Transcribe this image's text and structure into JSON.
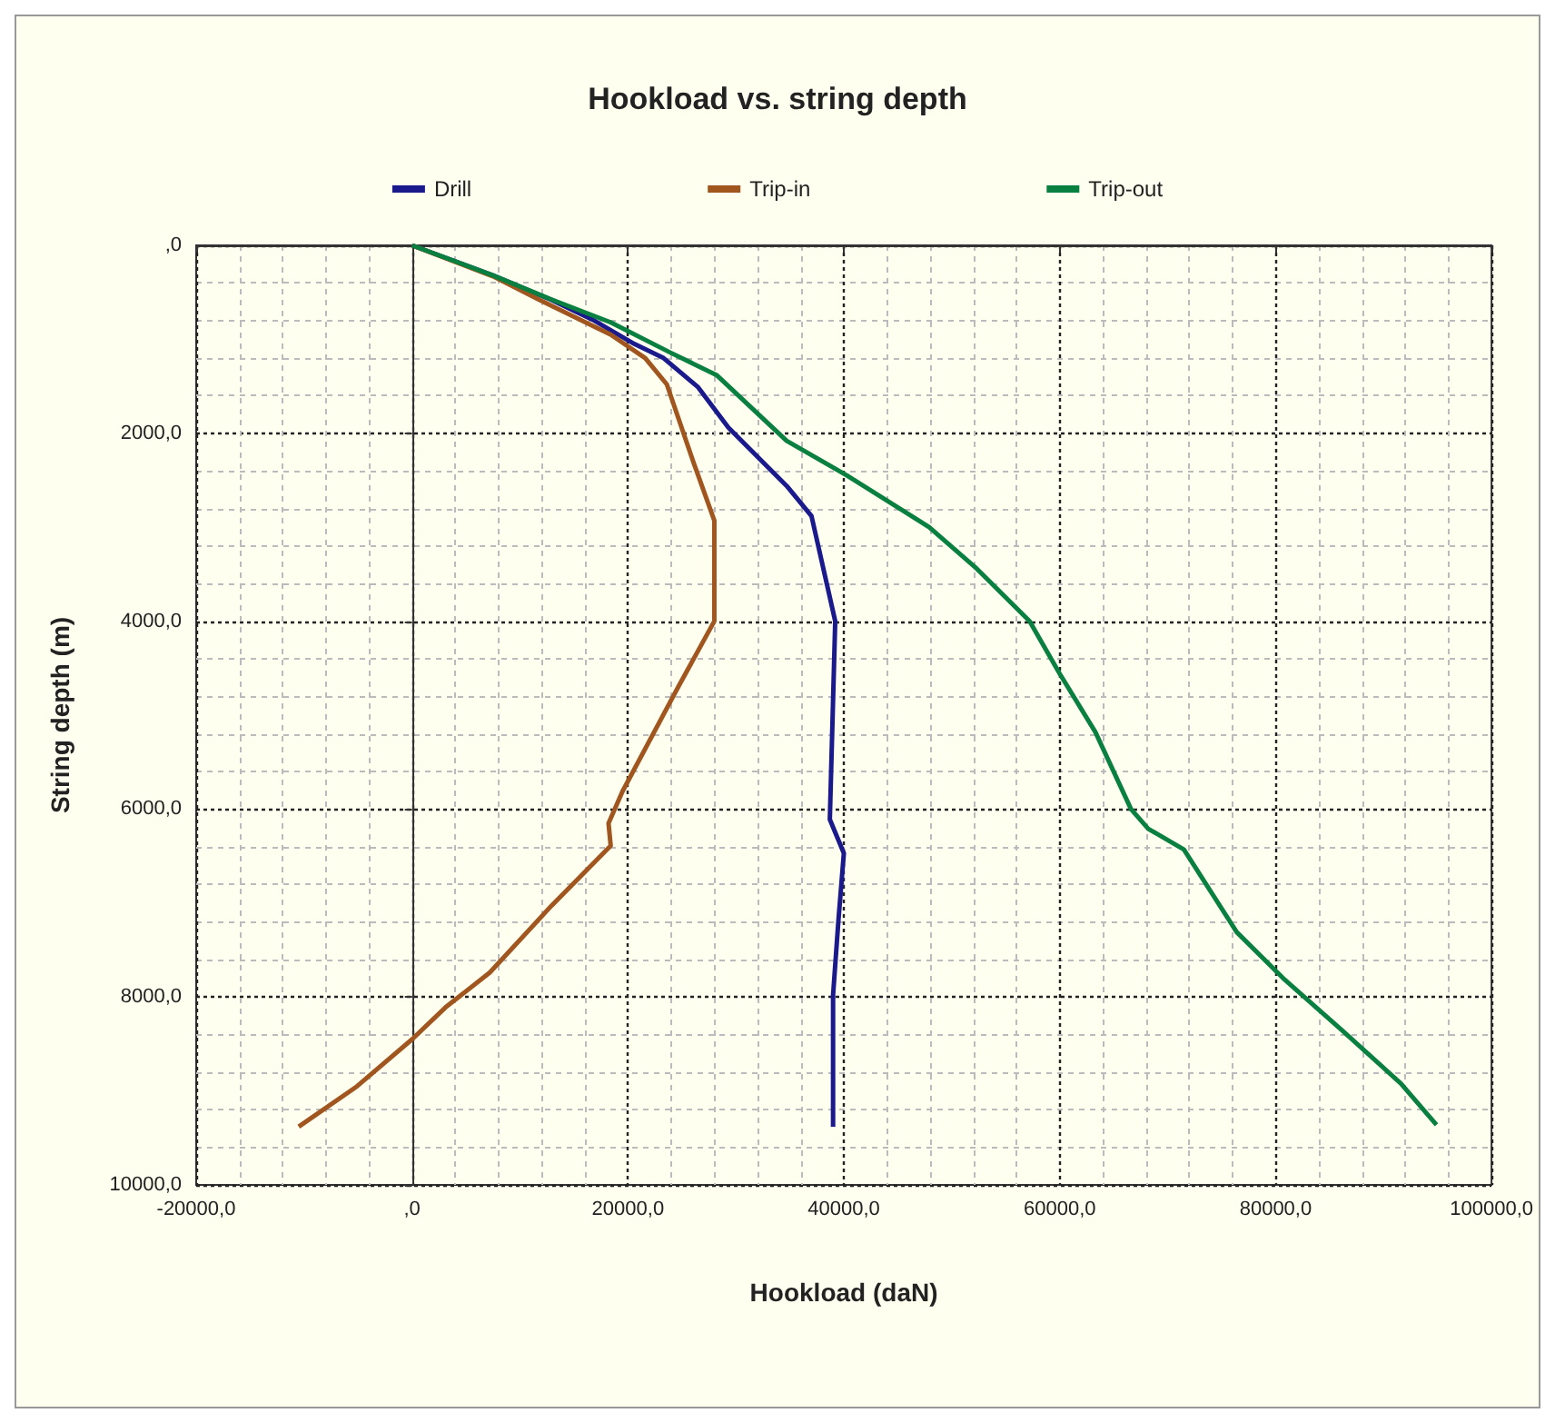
{
  "chart_data": {
    "type": "line",
    "title": "Hookload vs. string depth",
    "xlabel": "Hookload (daN)",
    "ylabel": "String depth (m)",
    "xlim": [
      -20000,
      100000
    ],
    "ylim": [
      10000,
      0
    ],
    "xticks": [
      {
        "value": -20000,
        "label": "-20000,0"
      },
      {
        "value": 0,
        "label": ",0"
      },
      {
        "value": 20000,
        "label": "20000,0"
      },
      {
        "value": 40000,
        "label": "40000,0"
      },
      {
        "value": 60000,
        "label": "60000,0"
      },
      {
        "value": 80000,
        "label": "80000,0"
      },
      {
        "value": 100000,
        "label": "100000,0"
      }
    ],
    "yticks": [
      {
        "value": 0,
        "label": ",0"
      },
      {
        "value": 2000,
        "label": "2000,0"
      },
      {
        "value": 4000,
        "label": "4000,0"
      },
      {
        "value": 6000,
        "label": "6000,0"
      },
      {
        "value": 8000,
        "label": "8000,0"
      },
      {
        "value": 10000,
        "label": "10000,0"
      }
    ],
    "grid": true,
    "legend": "top",
    "series": [
      {
        "name": "Drill",
        "color": "#1a1a8c",
        "x": [
          0,
          7500,
          12900,
          16700,
          20600,
          23300,
          26500,
          29300,
          34700,
          37000,
          39200,
          38700,
          40000,
          39500,
          39000,
          39000
        ],
        "values": [
          0,
          320,
          580,
          790,
          1050,
          1200,
          1510,
          1940,
          2560,
          2880,
          4000,
          6110,
          6470,
          7180,
          7980,
          9380
        ]
      },
      {
        "name": "Trip-in",
        "color": "#a0561e",
        "x": [
          0,
          7500,
          11800,
          18400,
          21600,
          23600,
          26100,
          28000,
          28000,
          24700,
          19500,
          18200,
          18400,
          12900,
          7200,
          3100,
          0,
          -5100,
          -10500
        ],
        "values": [
          0,
          330,
          580,
          950,
          1200,
          1480,
          2320,
          2930,
          4000,
          4690,
          5810,
          6150,
          6390,
          7030,
          7740,
          8110,
          8450,
          8950,
          9380
        ]
      },
      {
        "name": "Trip-out",
        "color": "#0a8040",
        "x": [
          0,
          7500,
          13000,
          18400,
          23900,
          28200,
          34700,
          40300,
          45700,
          47900,
          52300,
          57200,
          60000,
          63300,
          66600,
          68200,
          71500,
          76400,
          80700,
          86200,
          91600,
          94900
        ],
        "values": [
          0,
          320,
          580,
          820,
          1140,
          1380,
          2080,
          2450,
          2840,
          3000,
          3440,
          4000,
          4560,
          5180,
          6000,
          6210,
          6430,
          7310,
          7800,
          8360,
          8920,
          9360
        ]
      }
    ]
  }
}
